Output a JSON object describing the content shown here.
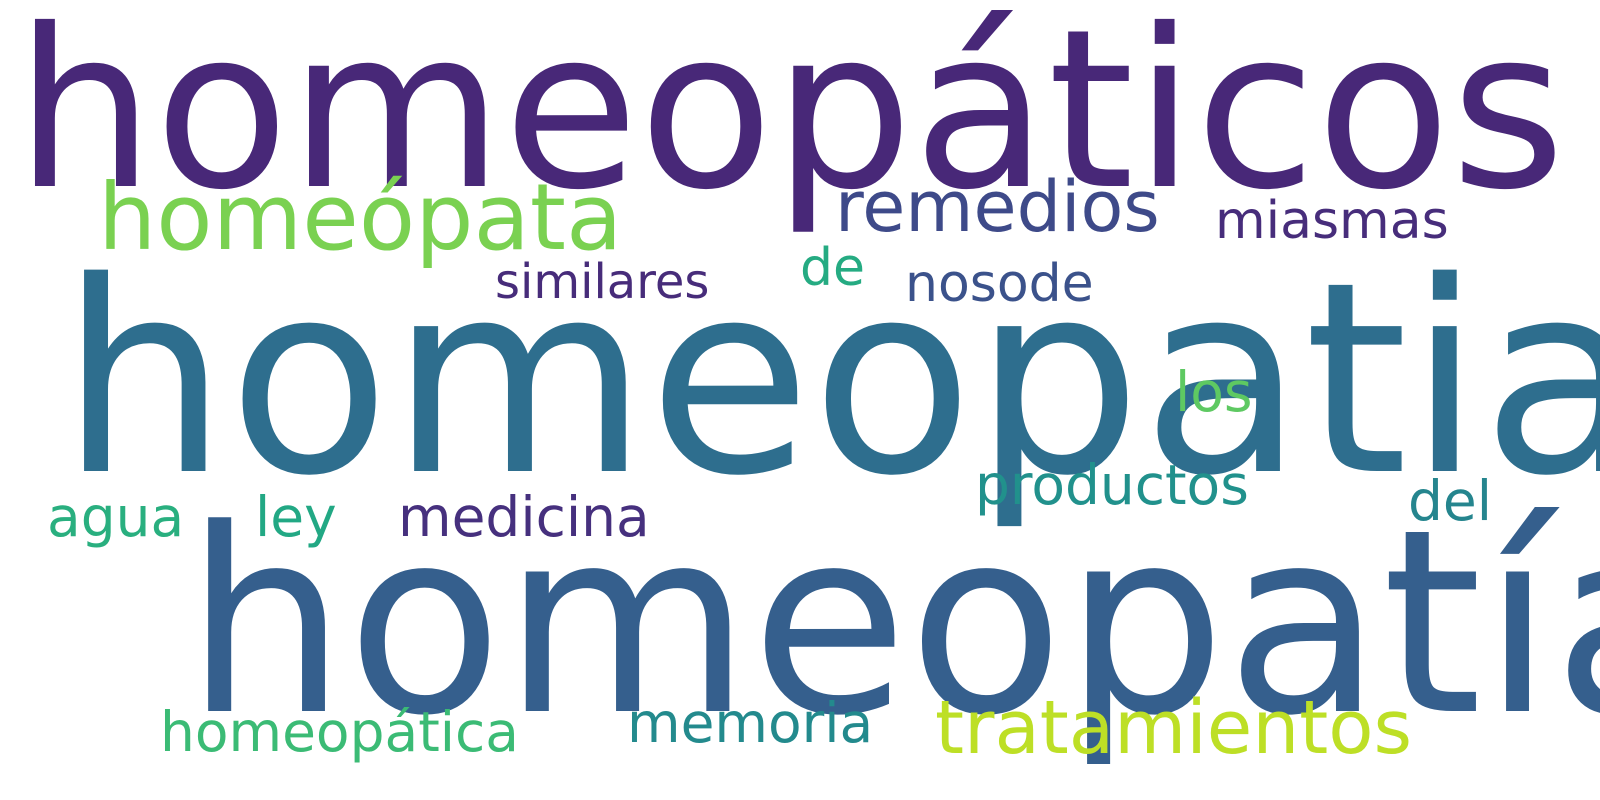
{
  "words": [
    {
      "text": "homeopáticos",
      "color": "#482878"
    },
    {
      "text": "homeópata",
      "color": "#7ad151"
    },
    {
      "text": "remedios",
      "color": "#3e4a89"
    },
    {
      "text": "miasmas",
      "color": "#472d7b"
    },
    {
      "text": "homeopatia",
      "color": "#2e6e8e"
    },
    {
      "text": "similares",
      "color": "#472c7a"
    },
    {
      "text": "de",
      "color": "#25ab82"
    },
    {
      "text": "nosode",
      "color": "#3b528b"
    },
    {
      "text": "los",
      "color": "#5ec962"
    },
    {
      "text": "productos",
      "color": "#21918c"
    },
    {
      "text": "del",
      "color": "#25858e"
    },
    {
      "text": "agua",
      "color": "#29af7f"
    },
    {
      "text": "ley",
      "color": "#22a884"
    },
    {
      "text": "medicina",
      "color": "#46307e"
    },
    {
      "text": "homeopatía",
      "color": "#355f8d"
    },
    {
      "text": "homeopática",
      "color": "#3bbb75"
    },
    {
      "text": "memoria",
      "color": "#238a8d"
    },
    {
      "text": "tratamientos",
      "color": "#bddf26"
    }
  ]
}
